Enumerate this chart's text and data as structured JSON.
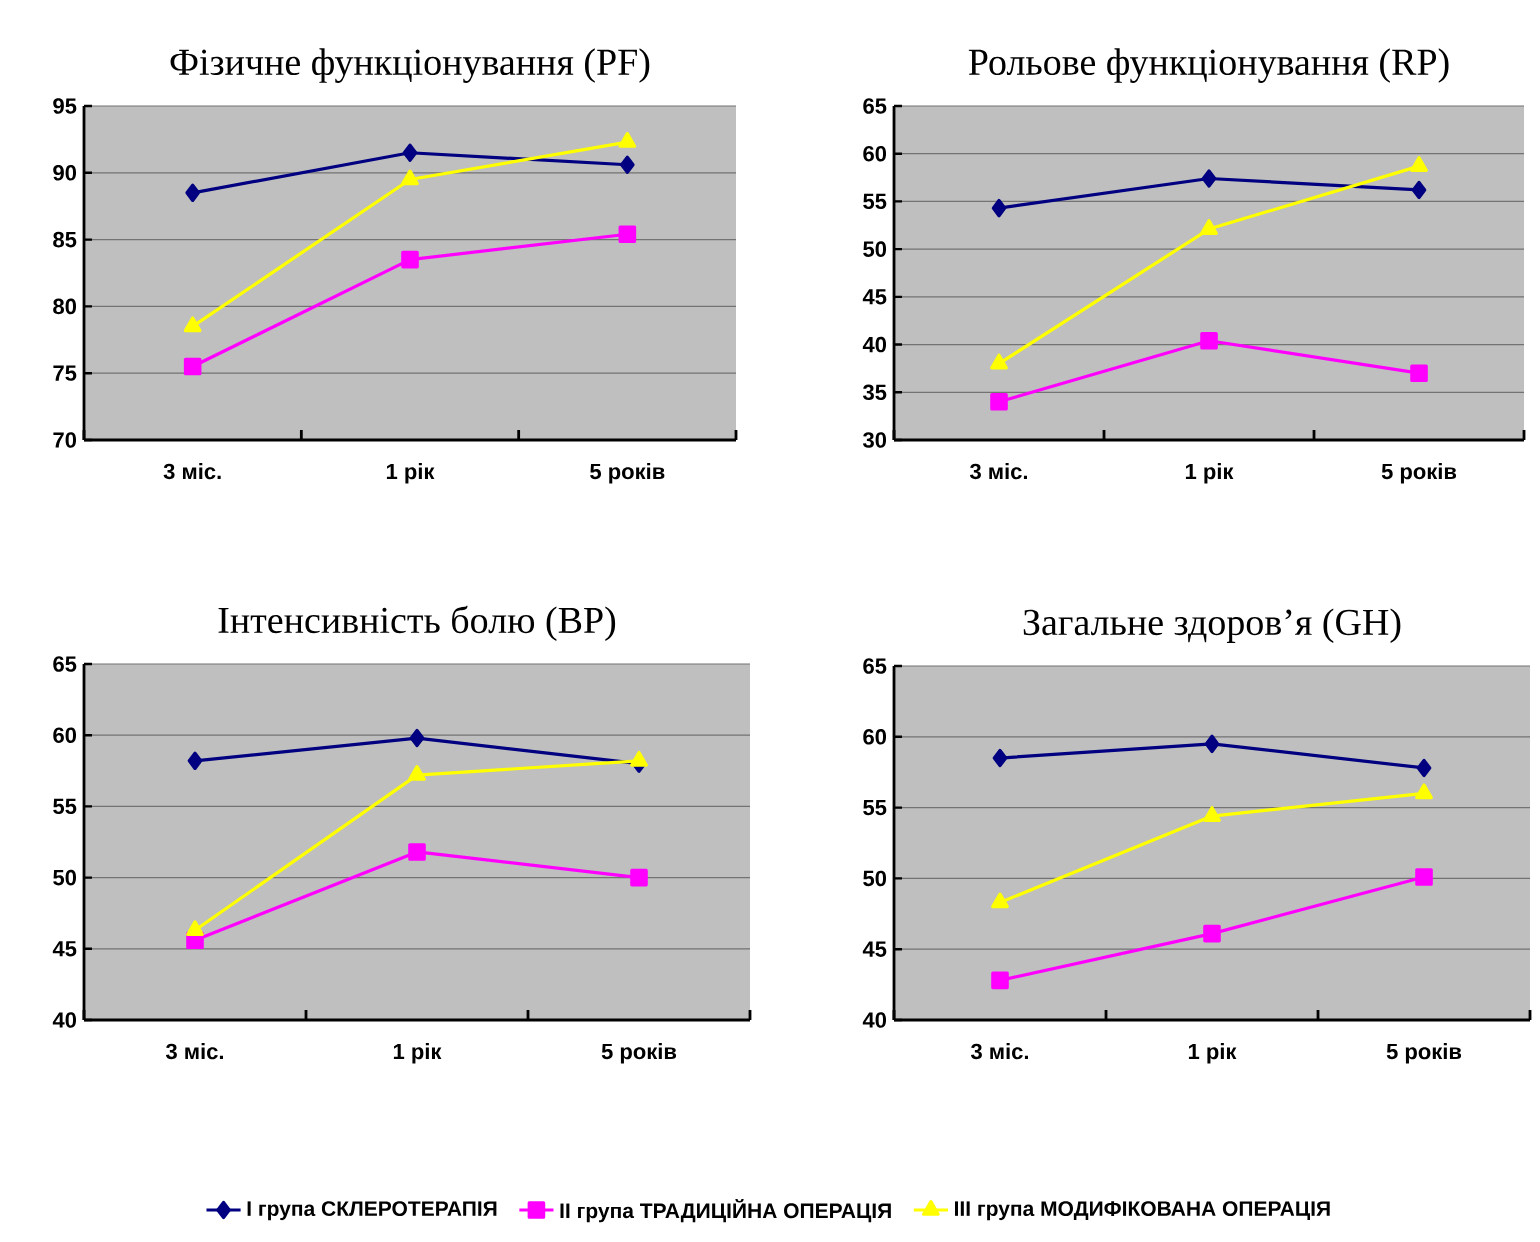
{
  "chart_data": [
    {
      "type": "line",
      "title": "Фізичне функціонування (PF)",
      "categories": [
        "3 міс.",
        "1 рік",
        "5 років"
      ],
      "ylim": [
        70,
        95
      ],
      "yticks": [
        70,
        75,
        80,
        85,
        90,
        95
      ],
      "grid": "y",
      "series": [
        {
          "color": "#000080",
          "marker": "diamond",
          "values": [
            88.5,
            91.5,
            90.6
          ]
        },
        {
          "color": "#ff00ff",
          "marker": "square",
          "values": [
            75.5,
            83.5,
            85.4
          ]
        },
        {
          "color": "#ffff00",
          "marker": "triangle",
          "values": [
            78.5,
            89.5,
            92.3
          ]
        }
      ]
    },
    {
      "type": "line",
      "title": "Рольове функціонування (RP)",
      "categories": [
        "3 міс.",
        "1 рік",
        "5 років"
      ],
      "ylim": [
        30,
        65
      ],
      "yticks": [
        30,
        35,
        40,
        45,
        50,
        55,
        60,
        65
      ],
      "grid": "y",
      "series": [
        {
          "color": "#000080",
          "marker": "diamond",
          "values": [
            54.3,
            57.4,
            56.2
          ]
        },
        {
          "color": "#ff00ff",
          "marker": "square",
          "values": [
            34.0,
            40.4,
            37.0
          ]
        },
        {
          "color": "#ffff00",
          "marker": "triangle",
          "values": [
            38.0,
            52.1,
            58.7
          ]
        }
      ]
    },
    {
      "type": "line",
      "title": "Інтенсивність болю (BP)",
      "categories": [
        "3 міс.",
        "1 рік",
        "5 років"
      ],
      "ylim": [
        40,
        65
      ],
      "yticks": [
        40,
        45,
        50,
        55,
        60,
        65
      ],
      "grid": "y",
      "series": [
        {
          "color": "#000080",
          "marker": "diamond",
          "values": [
            58.2,
            59.8,
            58.0
          ]
        },
        {
          "color": "#ff00ff",
          "marker": "square",
          "values": [
            45.6,
            51.8,
            50.0
          ]
        },
        {
          "color": "#ffff00",
          "marker": "triangle",
          "values": [
            46.3,
            57.2,
            58.2
          ]
        }
      ]
    },
    {
      "type": "line",
      "title": "Загальне здоров’я (GH)",
      "categories": [
        "3 міс.",
        "1 рік",
        "5 років"
      ],
      "ylim": [
        40,
        65
      ],
      "yticks": [
        40,
        45,
        50,
        55,
        60,
        65
      ],
      "grid": "y",
      "legend": "bottom",
      "series": [
        {
          "name": "І група СКЛЕРОТЕРАПІЯ",
          "color": "#000080",
          "marker": "diamond",
          "values": [
            58.5,
            59.5,
            57.8
          ]
        },
        {
          "name": "ІІ група ТРАДИЦІЙНА ОПЕРАЦІЯ",
          "color": "#ff00ff",
          "marker": "square",
          "values": [
            42.8,
            46.1,
            50.1
          ]
        },
        {
          "name": "ІІІ група МОДИФІКОВАНА ОПЕРАЦІЯ",
          "color": "#ffff00",
          "marker": "triangle",
          "values": [
            48.3,
            54.4,
            56.0
          ]
        }
      ]
    }
  ]
}
